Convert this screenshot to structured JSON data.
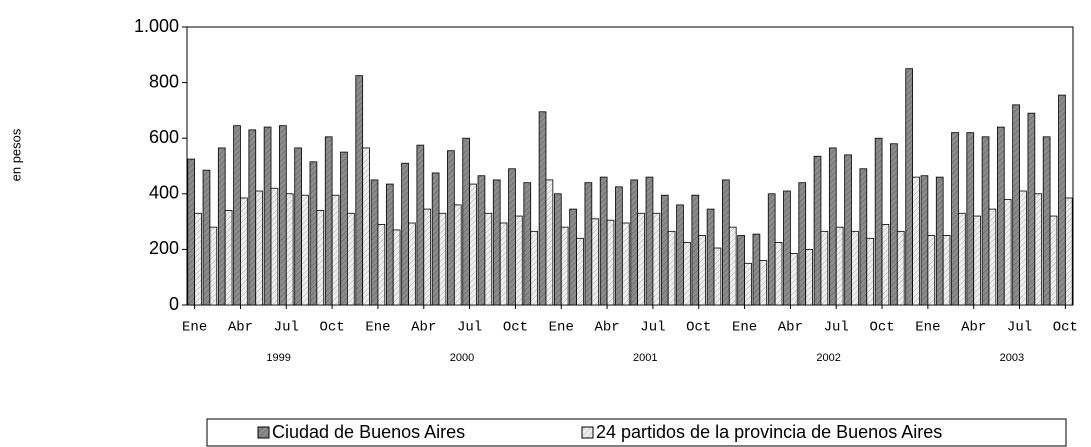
{
  "chart_data": {
    "type": "bar",
    "y_axis_label": "en pesos",
    "categories": [
      "Ene",
      null,
      null,
      "Abr",
      null,
      null,
      "Jul",
      null,
      null,
      "Oct",
      null,
      null,
      "Ene",
      null,
      null,
      "Abr",
      null,
      null,
      "Jul",
      null,
      null,
      "Oct",
      null,
      null,
      "Ene",
      null,
      null,
      "Abr",
      null,
      null,
      "Jul",
      null,
      null,
      "Oct",
      null,
      null,
      "Ene",
      null,
      null,
      "Abr",
      null,
      null,
      "Jul",
      null,
      null,
      "Oct",
      null,
      null,
      "Ene",
      null,
      null,
      "Abr",
      null,
      null,
      "Jul",
      null,
      null,
      "Oct"
    ],
    "year_labels": [
      "1999",
      "2000",
      "2001",
      "2002",
      "2003"
    ],
    "series": [
      {
        "name": "Ciudad de Buenos Aires",
        "color": "#8c8c8c",
        "values": [
          525,
          485,
          565,
          645,
          630,
          640,
          645,
          565,
          515,
          605,
          550,
          825,
          450,
          435,
          510,
          575,
          475,
          555,
          600,
          465,
          450,
          490,
          440,
          695,
          400,
          345,
          440,
          460,
          425,
          450,
          460,
          395,
          360,
          395,
          345,
          450,
          250,
          255,
          400,
          410,
          440,
          535,
          565,
          540,
          490,
          600,
          580,
          850,
          465,
          460,
          620,
          620,
          605,
          640,
          720,
          690,
          605,
          755
        ]
      },
      {
        "name": "24 partidos de la provincia de Buenos Aires",
        "color": "#e8e8e8",
        "values": [
          330,
          280,
          340,
          385,
          410,
          420,
          400,
          395,
          340,
          395,
          330,
          565,
          290,
          270,
          295,
          345,
          330,
          360,
          435,
          330,
          295,
          320,
          265,
          450,
          280,
          240,
          310,
          305,
          295,
          330,
          330,
          265,
          225,
          250,
          205,
          280,
          150,
          160,
          225,
          185,
          200,
          265,
          280,
          265,
          240,
          290,
          265,
          460,
          250,
          250,
          330,
          320,
          345,
          380,
          410,
          400,
          320,
          385
        ]
      }
    ],
    "ylim": [
      0,
      1000
    ],
    "yticks": [
      0,
      200,
      400,
      600,
      800,
      {
        "value": 1000,
        "label": "1.000"
      }
    ],
    "legend": "bottom"
  }
}
